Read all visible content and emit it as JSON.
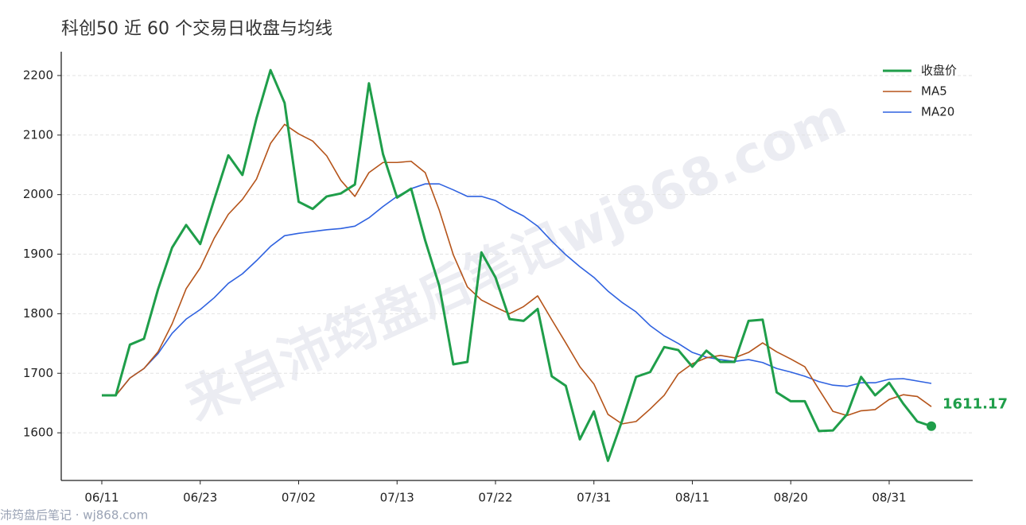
{
  "chart_data": {
    "type": "line",
    "title": "科创50 近 60 个交易日收盘与均线",
    "watermark": "来自沛筠盘后笔记wj868.com",
    "footer": "沛筠盘后笔记 · wj868.com",
    "categories": [
      "06/11",
      null,
      null,
      null,
      null,
      null,
      null,
      "06/23",
      null,
      null,
      null,
      null,
      null,
      null,
      "07/02",
      null,
      null,
      null,
      null,
      null,
      null,
      "07/13",
      null,
      null,
      null,
      null,
      null,
      null,
      "07/22",
      null,
      null,
      null,
      null,
      null,
      null,
      "07/31",
      null,
      null,
      null,
      null,
      null,
      null,
      "08/11",
      null,
      null,
      null,
      null,
      null,
      null,
      "08/20",
      null,
      null,
      null,
      null,
      null,
      null,
      "08/31",
      null,
      null,
      null
    ],
    "series": [
      {
        "name": "收盘价",
        "color": "#1f9e4a",
        "values": [
          1663,
          1663,
          1748,
          1758,
          1841,
          1911,
          1949,
          1917,
          1992,
          2066,
          2033,
          2128,
          2209,
          2154,
          1988,
          1976,
          1997,
          2002,
          2017,
          2187,
          2068,
          1995,
          2010,
          1923,
          1847,
          1715,
          1719,
          1903,
          1861,
          1791,
          1788,
          1808,
          1695,
          1679,
          1589,
          1636,
          1553,
          1620,
          1694,
          1702,
          1744,
          1739,
          1711,
          1738,
          1719,
          1719,
          1788,
          1790,
          1668,
          1653,
          1653,
          1603,
          1604,
          1631,
          1694,
          1663,
          1684,
          1649,
          1619,
          1611.17
        ]
      },
      {
        "name": "MA5",
        "color": "#b5541a",
        "values": [
          1663,
          1663,
          1692,
          1708,
          1736,
          1783,
          1842,
          1877,
          1927,
          1967,
          1992,
          2026,
          2086,
          2118,
          2102,
          2090,
          2065,
          2024,
          1997,
          2037,
          2054,
          2054,
          2056,
          2037,
          1974,
          1899,
          1845,
          1823,
          1811,
          1800,
          1812,
          1830,
          1790,
          1751,
          1711,
          1682,
          1631,
          1615,
          1619,
          1640,
          1663,
          1699,
          1716,
          1726,
          1730,
          1726,
          1735,
          1751,
          1736,
          1724,
          1711,
          1673,
          1636,
          1629,
          1637,
          1639,
          1656,
          1664,
          1661,
          1644
        ]
      },
      {
        "name": "MA20",
        "color": "#2f62e0",
        "values": [
          1663,
          1663,
          1692,
          1708,
          1733,
          1767,
          1791,
          1807,
          1827,
          1851,
          1867,
          1889,
          1913,
          1931,
          1935,
          1938,
          1941,
          1943,
          1947,
          1961,
          1980,
          1997,
          2010,
          2018,
          2018,
          2008,
          1997,
          1997,
          1990,
          1976,
          1964,
          1947,
          1922,
          1899,
          1879,
          1861,
          1838,
          1819,
          1803,
          1780,
          1763,
          1750,
          1735,
          1727,
          1723,
          1720,
          1723,
          1718,
          1708,
          1702,
          1695,
          1686,
          1680,
          1678,
          1684,
          1684,
          1690,
          1691,
          1687,
          1683
        ]
      }
    ],
    "ylim": [
      1520,
      2240
    ],
    "yticks": [
      1600,
      1700,
      1800,
      1900,
      2000,
      2100,
      2200
    ],
    "grid": true,
    "legend": "upper right"
  }
}
